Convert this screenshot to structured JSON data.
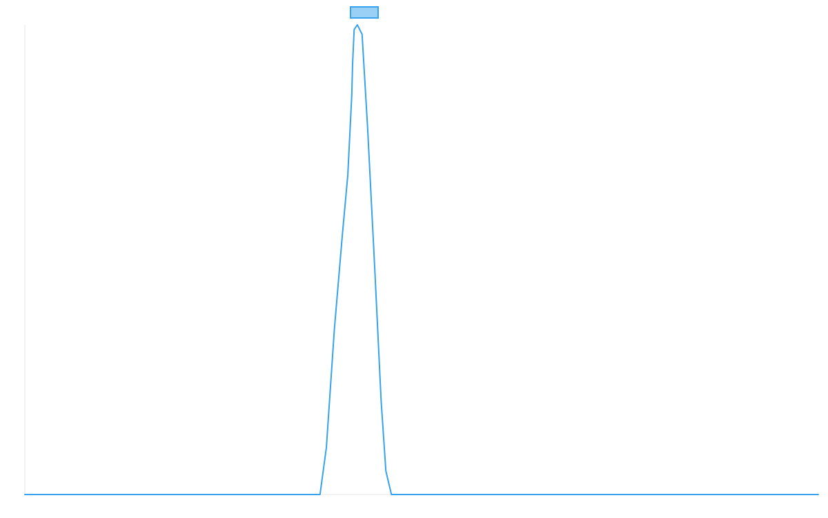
{
  "colors": {
    "series_line": "#36a2eb",
    "legend_fill": "#9ad0f5",
    "axis_line": "#e5e5e5"
  },
  "chart_data": {
    "type": "line",
    "title": "",
    "xlabel": "",
    "ylabel": "",
    "grid": false,
    "legend_placement": "top-center",
    "xlim": [
      0,
      100
    ],
    "ylim": [
      0,
      100
    ],
    "series": [
      {
        "name": "",
        "x": [
          0,
          37.2,
          38.0,
          39.0,
          40.0,
          40.7,
          41.2,
          41.3,
          41.5,
          41.9,
          42.5,
          43.2,
          44.1,
          44.9,
          45.5,
          46.2,
          100
        ],
        "y": [
          0,
          0,
          10,
          35,
          55,
          68,
          85,
          91.5,
          99,
          100,
          98,
          78,
          48,
          20,
          5,
          0,
          0
        ]
      }
    ]
  }
}
